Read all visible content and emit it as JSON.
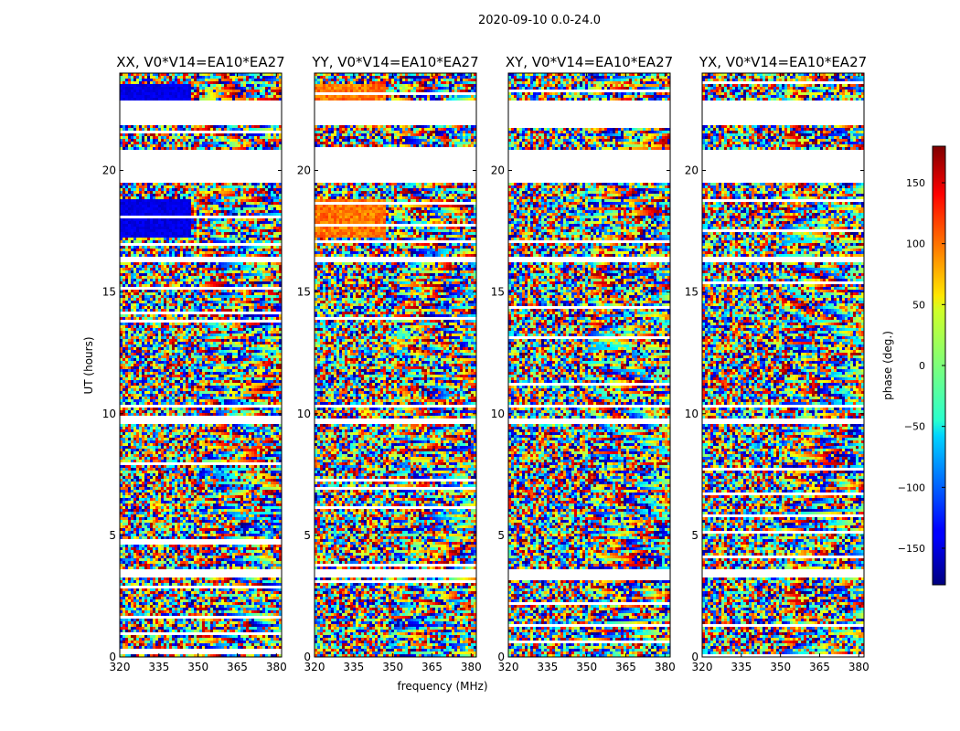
{
  "chart_data": {
    "type": "heatmap",
    "title": "2020-09-10 0.0-24.0",
    "xlabel": "frequency (MHz)",
    "ylabel": "UT (hours)",
    "xlim": [
      320,
      382
    ],
    "ylim": [
      0,
      24
    ],
    "xticks": [
      "320",
      "335",
      "350",
      "365",
      "380"
    ],
    "xtick_values": [
      320,
      335,
      350,
      365,
      380
    ],
    "yticks": [
      "0",
      "5",
      "10",
      "15",
      "20"
    ],
    "ytick_values": [
      0,
      5,
      10,
      15,
      20
    ],
    "colormap": "jet",
    "grid": false,
    "panels": [
      {
        "title": "XX, V0*V14=EA10*EA27",
        "pattern": "xx"
      },
      {
        "title": "YY, V0*V14=EA10*EA27",
        "pattern": "yy"
      },
      {
        "title": "XY, V0*V14=EA10*EA27",
        "pattern": "xy"
      },
      {
        "title": "YX, V0*V14=EA10*EA27",
        "pattern": "yx"
      }
    ],
    "flagged_ut_ranges": [
      [
        3.3,
        3.6
      ],
      [
        9.6,
        9.8
      ],
      [
        10.2,
        10.4
      ],
      [
        16.2,
        16.4
      ],
      [
        19.5,
        20.8
      ],
      [
        21.9,
        22.9
      ]
    ],
    "colorbar": {
      "label": "phase (deg.)",
      "range": [
        -180,
        180
      ],
      "ticks": [
        "150",
        "100",
        "50",
        "0",
        "−50",
        "−100",
        "−150"
      ],
      "tick_values": [
        150,
        100,
        50,
        0,
        -50,
        -100,
        -150
      ]
    }
  }
}
